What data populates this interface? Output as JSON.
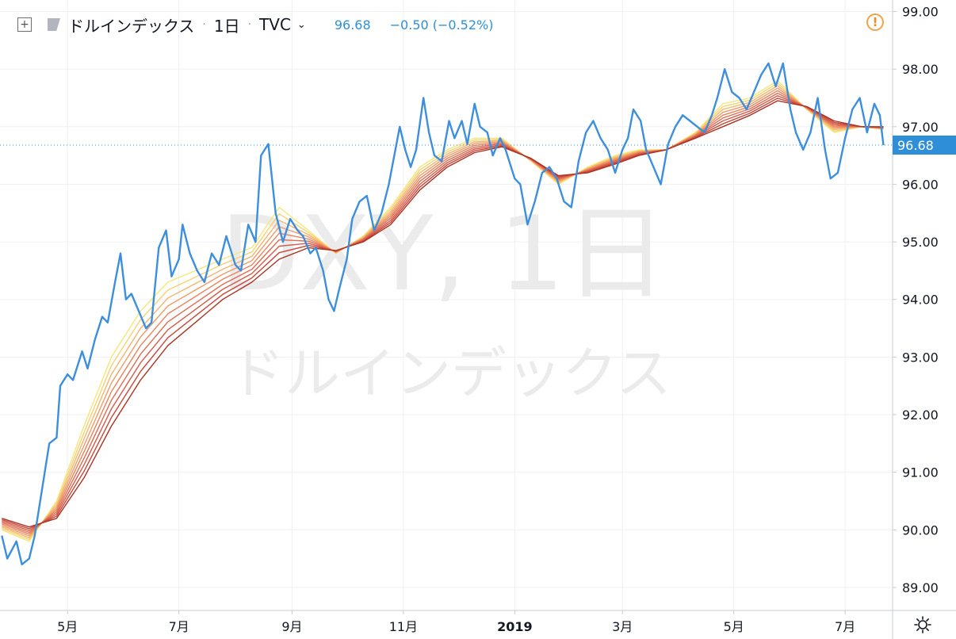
{
  "header": {
    "plus_icon": "plus-square-icon",
    "flag_icon": "flag-icon",
    "symbol": "ドルインデックス",
    "sep1": "·",
    "interval": "1日",
    "sep2": "·",
    "exchange": "TVC",
    "chevron": "⌄",
    "price": "96.68",
    "change": "−0.50 (−0.52%)",
    "warning_icon": "!"
  },
  "watermark": {
    "line1": "DXY, 1日",
    "line2": "ドルインデックス"
  },
  "price_tag": "96.68",
  "colors": {
    "price_line": "#3d8fdd",
    "ribbon": [
      "#f5e678",
      "#f7d275",
      "#f4b56e",
      "#f09b66",
      "#e9825c",
      "#df6b52",
      "#d55a48",
      "#c8473a",
      "#a93322"
    ],
    "axis_text": "#131722",
    "grid": "#eef0f3",
    "current_price": "#2e8fd8"
  },
  "chart_data": {
    "type": "line",
    "title": "ドルインデックス",
    "xlim": [
      "2018-03-25",
      "2019-07-27"
    ],
    "ylim": [
      88.6,
      99.2
    ],
    "y_ticks": [
      "89.00",
      "90.00",
      "91.00",
      "92.00",
      "93.00",
      "94.00",
      "95.00",
      "96.00",
      "97.00",
      "98.00",
      "99.00"
    ],
    "x_ticks": [
      {
        "label": "5月",
        "date": "2018-05-01",
        "bold": false
      },
      {
        "label": "7月",
        "date": "2018-07-01",
        "bold": false
      },
      {
        "label": "9月",
        "date": "2018-09-01",
        "bold": false
      },
      {
        "label": "11月",
        "date": "2018-11-01",
        "bold": false
      },
      {
        "label": "2019",
        "date": "2019-01-01",
        "bold": true
      },
      {
        "label": "3月",
        "date": "2019-03-01",
        "bold": false
      },
      {
        "label": "5月",
        "date": "2019-05-01",
        "bold": false
      },
      {
        "label": "7月",
        "date": "2019-07-01",
        "bold": false
      }
    ],
    "last_value": 96.68,
    "series": [
      {
        "role": "price",
        "points": [
          [
            "2018-03-26",
            89.9
          ],
          [
            "2018-03-29",
            89.5
          ],
          [
            "2018-04-03",
            89.8
          ],
          [
            "2018-04-06",
            89.4
          ],
          [
            "2018-04-10",
            89.5
          ],
          [
            "2018-04-13",
            89.9
          ],
          [
            "2018-04-18",
            90.9
          ],
          [
            "2018-04-21",
            91.5
          ],
          [
            "2018-04-25",
            91.6
          ],
          [
            "2018-04-27",
            92.5
          ],
          [
            "2018-05-01",
            92.7
          ],
          [
            "2018-05-04",
            92.6
          ],
          [
            "2018-05-09",
            93.1
          ],
          [
            "2018-05-12",
            92.8
          ],
          [
            "2018-05-16",
            93.3
          ],
          [
            "2018-05-20",
            93.7
          ],
          [
            "2018-05-23",
            93.6
          ],
          [
            "2018-05-27",
            94.3
          ],
          [
            "2018-05-30",
            94.8
          ],
          [
            "2018-06-02",
            94.0
          ],
          [
            "2018-06-05",
            94.1
          ],
          [
            "2018-06-09",
            93.8
          ],
          [
            "2018-06-13",
            93.5
          ],
          [
            "2018-06-16",
            93.6
          ],
          [
            "2018-06-20",
            94.9
          ],
          [
            "2018-06-24",
            95.2
          ],
          [
            "2018-06-27",
            94.4
          ],
          [
            "2018-07-01",
            94.7
          ],
          [
            "2018-07-03",
            95.3
          ],
          [
            "2018-07-07",
            94.8
          ],
          [
            "2018-07-11",
            94.5
          ],
          [
            "2018-07-15",
            94.3
          ],
          [
            "2018-07-19",
            94.8
          ],
          [
            "2018-07-23",
            94.6
          ],
          [
            "2018-07-27",
            95.1
          ],
          [
            "2018-08-01",
            94.6
          ],
          [
            "2018-08-04",
            94.5
          ],
          [
            "2018-08-08",
            95.3
          ],
          [
            "2018-08-12",
            95.0
          ],
          [
            "2018-08-15",
            96.5
          ],
          [
            "2018-08-19",
            96.7
          ],
          [
            "2018-08-23",
            95.5
          ],
          [
            "2018-08-27",
            95.0
          ],
          [
            "2018-08-31",
            95.4
          ],
          [
            "2018-09-04",
            95.2
          ],
          [
            "2018-09-07",
            95.1
          ],
          [
            "2018-09-11",
            94.8
          ],
          [
            "2018-09-14",
            94.9
          ],
          [
            "2018-09-18",
            94.5
          ],
          [
            "2018-09-21",
            94.0
          ],
          [
            "2018-09-24",
            93.8
          ],
          [
            "2018-09-27",
            94.2
          ],
          [
            "2018-10-01",
            94.7
          ],
          [
            "2018-10-04",
            95.4
          ],
          [
            "2018-10-08",
            95.7
          ],
          [
            "2018-10-12",
            95.8
          ],
          [
            "2018-10-16",
            95.2
          ],
          [
            "2018-10-20",
            95.5
          ],
          [
            "2018-10-24",
            96.0
          ],
          [
            "2018-10-27",
            96.5
          ],
          [
            "2018-10-30",
            97.0
          ],
          [
            "2018-11-02",
            96.6
          ],
          [
            "2018-11-05",
            96.3
          ],
          [
            "2018-11-08",
            96.6
          ],
          [
            "2018-11-12",
            97.5
          ],
          [
            "2018-11-15",
            96.9
          ],
          [
            "2018-11-18",
            96.5
          ],
          [
            "2018-11-22",
            96.4
          ],
          [
            "2018-11-26",
            97.1
          ],
          [
            "2018-11-29",
            96.8
          ],
          [
            "2018-12-03",
            97.1
          ],
          [
            "2018-12-06",
            96.7
          ],
          [
            "2018-12-10",
            97.4
          ],
          [
            "2018-12-13",
            97.0
          ],
          [
            "2018-12-17",
            96.9
          ],
          [
            "2018-12-20",
            96.5
          ],
          [
            "2018-12-24",
            96.8
          ],
          [
            "2018-12-27",
            96.6
          ],
          [
            "2019-01-01",
            96.1
          ],
          [
            "2019-01-04",
            96.0
          ],
          [
            "2019-01-08",
            95.3
          ],
          [
            "2019-01-12",
            95.7
          ],
          [
            "2019-01-16",
            96.2
          ],
          [
            "2019-01-20",
            96.3
          ],
          [
            "2019-01-24",
            96.1
          ],
          [
            "2019-01-28",
            95.7
          ],
          [
            "2019-02-01",
            95.6
          ],
          [
            "2019-02-05",
            96.4
          ],
          [
            "2019-02-09",
            96.9
          ],
          [
            "2019-02-13",
            97.1
          ],
          [
            "2019-02-17",
            96.8
          ],
          [
            "2019-02-21",
            96.6
          ],
          [
            "2019-02-25",
            96.2
          ],
          [
            "2019-03-01",
            96.6
          ],
          [
            "2019-03-04",
            96.8
          ],
          [
            "2019-03-07",
            97.3
          ],
          [
            "2019-03-11",
            97.1
          ],
          [
            "2019-03-14",
            96.6
          ],
          [
            "2019-03-18",
            96.3
          ],
          [
            "2019-03-22",
            96.0
          ],
          [
            "2019-03-26",
            96.7
          ],
          [
            "2019-03-30",
            97.0
          ],
          [
            "2019-04-03",
            97.2
          ],
          [
            "2019-04-07",
            97.1
          ],
          [
            "2019-04-11",
            97.0
          ],
          [
            "2019-04-15",
            96.9
          ],
          [
            "2019-04-19",
            97.2
          ],
          [
            "2019-04-22",
            97.5
          ],
          [
            "2019-04-26",
            98.0
          ],
          [
            "2019-04-30",
            97.6
          ],
          [
            "2019-05-04",
            97.5
          ],
          [
            "2019-05-08",
            97.3
          ],
          [
            "2019-05-12",
            97.6
          ],
          [
            "2019-05-16",
            97.9
          ],
          [
            "2019-05-20",
            98.1
          ],
          [
            "2019-05-24",
            97.7
          ],
          [
            "2019-05-28",
            98.1
          ],
          [
            "2019-06-01",
            97.3
          ],
          [
            "2019-06-04",
            96.9
          ],
          [
            "2019-06-08",
            96.6
          ],
          [
            "2019-06-12",
            96.9
          ],
          [
            "2019-06-16",
            97.5
          ],
          [
            "2019-06-20",
            96.6
          ],
          [
            "2019-06-23",
            96.1
          ],
          [
            "2019-06-27",
            96.2
          ],
          [
            "2019-07-01",
            96.8
          ],
          [
            "2019-07-05",
            97.3
          ],
          [
            "2019-07-09",
            97.5
          ],
          [
            "2019-07-13",
            96.9
          ],
          [
            "2019-07-17",
            97.4
          ],
          [
            "2019-07-20",
            97.2
          ],
          [
            "2019-07-22",
            96.68
          ]
        ]
      },
      {
        "role": "ribbon-fast",
        "points": [
          [
            "2018-03-26",
            90.0
          ],
          [
            "2018-04-10",
            89.8
          ],
          [
            "2018-04-25",
            90.5
          ],
          [
            "2018-05-10",
            91.8
          ],
          [
            "2018-05-25",
            93.0
          ],
          [
            "2018-06-10",
            93.8
          ],
          [
            "2018-06-25",
            94.3
          ],
          [
            "2018-07-10",
            94.5
          ],
          [
            "2018-07-25",
            94.7
          ],
          [
            "2018-08-10",
            94.9
          ],
          [
            "2018-08-25",
            95.6
          ],
          [
            "2018-09-10",
            95.2
          ],
          [
            "2018-09-25",
            94.8
          ],
          [
            "2018-10-10",
            95.1
          ],
          [
            "2018-10-25",
            95.6
          ],
          [
            "2018-11-10",
            96.3
          ],
          [
            "2018-11-25",
            96.6
          ],
          [
            "2018-12-10",
            96.8
          ],
          [
            "2018-12-25",
            96.8
          ],
          [
            "2019-01-10",
            96.4
          ],
          [
            "2019-01-25",
            96.0
          ],
          [
            "2019-02-10",
            96.3
          ],
          [
            "2019-02-25",
            96.5
          ],
          [
            "2019-03-10",
            96.6
          ],
          [
            "2019-03-25",
            96.6
          ],
          [
            "2019-04-10",
            96.9
          ],
          [
            "2019-04-25",
            97.4
          ],
          [
            "2019-05-10",
            97.5
          ],
          [
            "2019-05-25",
            97.8
          ],
          [
            "2019-06-10",
            97.3
          ],
          [
            "2019-06-25",
            96.9
          ],
          [
            "2019-07-10",
            97.0
          ],
          [
            "2019-07-22",
            96.95
          ]
        ]
      },
      {
        "role": "ribbon-slow",
        "points": [
          [
            "2018-03-26",
            90.2
          ],
          [
            "2018-04-10",
            90.05
          ],
          [
            "2018-04-25",
            90.2
          ],
          [
            "2018-05-10",
            90.9
          ],
          [
            "2018-05-25",
            91.8
          ],
          [
            "2018-06-10",
            92.6
          ],
          [
            "2018-06-25",
            93.2
          ],
          [
            "2018-07-10",
            93.6
          ],
          [
            "2018-07-25",
            94.0
          ],
          [
            "2018-08-10",
            94.3
          ],
          [
            "2018-08-25",
            94.7
          ],
          [
            "2018-09-10",
            94.9
          ],
          [
            "2018-09-25",
            94.85
          ],
          [
            "2018-10-10",
            95.0
          ],
          [
            "2018-10-25",
            95.3
          ],
          [
            "2018-11-10",
            95.9
          ],
          [
            "2018-11-25",
            96.3
          ],
          [
            "2018-12-10",
            96.55
          ],
          [
            "2018-12-25",
            96.65
          ],
          [
            "2019-01-10",
            96.45
          ],
          [
            "2019-01-25",
            96.15
          ],
          [
            "2019-02-10",
            96.2
          ],
          [
            "2019-02-25",
            96.35
          ],
          [
            "2019-03-10",
            96.5
          ],
          [
            "2019-03-25",
            96.6
          ],
          [
            "2019-04-10",
            96.8
          ],
          [
            "2019-04-25",
            97.0
          ],
          [
            "2019-05-10",
            97.2
          ],
          [
            "2019-05-25",
            97.45
          ],
          [
            "2019-06-10",
            97.35
          ],
          [
            "2019-06-25",
            97.1
          ],
          [
            "2019-07-10",
            97.0
          ],
          [
            "2019-07-22",
            97.0
          ]
        ]
      }
    ]
  }
}
